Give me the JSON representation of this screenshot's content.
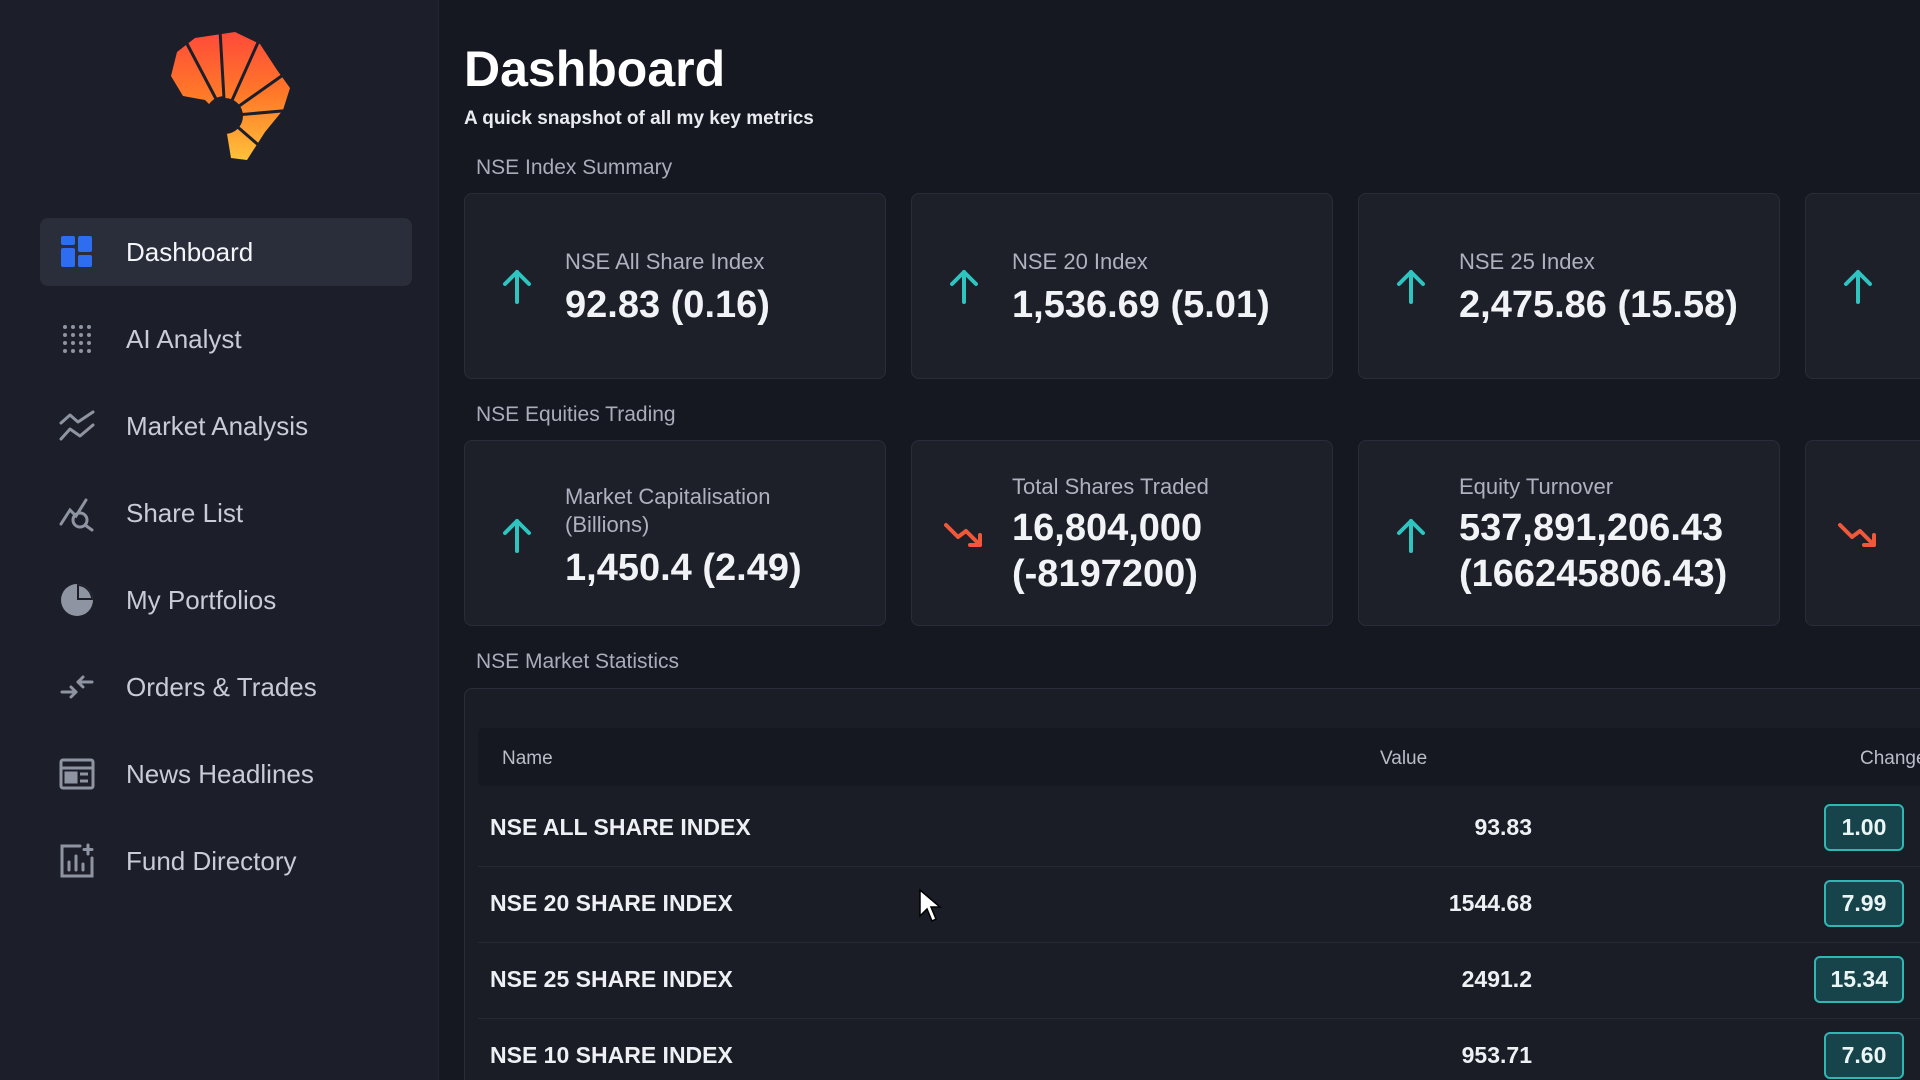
{
  "sidebar": {
    "items": [
      {
        "label": "Dashboard",
        "icon": "grid-icon",
        "active": true
      },
      {
        "label": "AI Analyst",
        "icon": "dots-grid-icon",
        "active": false
      },
      {
        "label": "Market Analysis",
        "icon": "trend-lines-icon",
        "active": false
      },
      {
        "label": "Share List",
        "icon": "chart-magnifier-icon",
        "active": false
      },
      {
        "label": "My Portfolios",
        "icon": "pie-chart-icon",
        "active": false
      },
      {
        "label": "Orders & Trades",
        "icon": "exchange-arrows-icon",
        "active": false
      },
      {
        "label": "News Headlines",
        "icon": "newspaper-icon",
        "active": false
      },
      {
        "label": "Fund Directory",
        "icon": "bar-chart-plus-icon",
        "active": false
      }
    ]
  },
  "header": {
    "title": "Dashboard",
    "subtitle": "A quick snapshot of all my key metrics"
  },
  "index_summary": {
    "label": "NSE Index Summary",
    "cards": [
      {
        "title": "NSE All Share Index",
        "value": "92.83 (0.16)",
        "trend": "up"
      },
      {
        "title": "NSE 20 Index",
        "value": "1,536.69 (5.01)",
        "trend": "up"
      },
      {
        "title": "NSE 25 Index",
        "value": "2,475.86 (15.58)",
        "trend": "up"
      }
    ]
  },
  "equities_trading": {
    "label": "NSE Equities Trading",
    "cards": [
      {
        "title_line1": "Market Capitalisation",
        "title_line2": "(Billions)",
        "value_line1": "1,450.4 (2.49)",
        "trend": "up"
      },
      {
        "title_line1": "Total Shares Traded",
        "value_line1": "16,804,000",
        "value_line2": "(-8197200)",
        "trend": "down"
      },
      {
        "title_line1": "Equity Turnover",
        "value_line1": "537,891,206.43",
        "value_line2": "(166245806.43)",
        "trend": "up"
      }
    ]
  },
  "market_statistics": {
    "label": "NSE Market Statistics",
    "columns": [
      "Name",
      "Value",
      "Change"
    ],
    "rows": [
      {
        "name": "NSE ALL SHARE INDEX",
        "value": "93.83",
        "change": "1.00"
      },
      {
        "name": "NSE 20 SHARE INDEX",
        "value": "1544.68",
        "change": "7.99"
      },
      {
        "name": "NSE 25 SHARE INDEX",
        "value": "2491.2",
        "change": "15.34"
      },
      {
        "name": "NSE 10 SHARE INDEX",
        "value": "953.71",
        "change": "7.60"
      }
    ]
  },
  "colors": {
    "accent_up": "#2ec4c0",
    "accent_down": "#f0583a",
    "background": "#161821",
    "sidebar": "#1c1f29",
    "active_nav": "#2a2e3b"
  }
}
